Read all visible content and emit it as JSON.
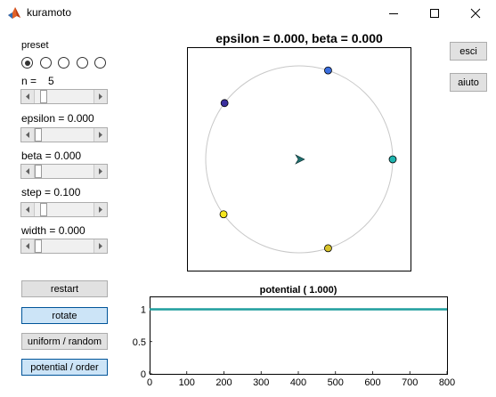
{
  "window": {
    "title": "kuramoto",
    "icon": "matlab-icon"
  },
  "controls": {
    "preset_label": "preset",
    "preset_options": 5,
    "preset_selected": 0,
    "n_label": "n =",
    "n_value": "5",
    "epsilon_label": "epsilon = 0.000",
    "beta_label": "beta = 0.000",
    "step_label": "step = 0.100",
    "width_label": "width = 0.000"
  },
  "sliders": [
    {
      "name": "n",
      "fraction": 0.1
    },
    {
      "name": "epsilon",
      "fraction": 0.0
    },
    {
      "name": "beta",
      "fraction": 0.0
    },
    {
      "name": "step",
      "fraction": 0.1
    },
    {
      "name": "width",
      "fraction": 0.0
    }
  ],
  "buttons": {
    "restart": "restart",
    "rotate": "rotate",
    "uniform_random": "uniform / random",
    "potential_order": "potential / order",
    "esci": "esci",
    "aiuto": "aiuto"
  },
  "circle_plot": {
    "title": "epsilon = 0.000, beta = 0.000",
    "oscillators": [
      {
        "angle_deg": 72,
        "color": "#3b6fe0"
      },
      {
        "angle_deg": 143,
        "color": "#3a2f9e"
      },
      {
        "angle_deg": 216,
        "color": "#f5e61e"
      },
      {
        "angle_deg": 288,
        "color": "#d8c32a"
      },
      {
        "angle_deg": 0,
        "color": "#1fb5b0"
      }
    ],
    "order_parameter": {
      "magnitude": 0.0,
      "angle_deg": 0,
      "color": "#1f6e6e"
    },
    "circle_color": "#c8c8c8"
  },
  "chart_data": {
    "type": "line",
    "title": "potential ( 1.000)",
    "xlabel": "",
    "ylabel": "",
    "xlim": [
      0,
      800
    ],
    "ylim": [
      0,
      1.2
    ],
    "xticks": [
      0,
      100,
      200,
      300,
      400,
      500,
      600,
      700,
      800
    ],
    "yticks": [
      0,
      0.5,
      1
    ],
    "ytick_labels": [
      "0",
      "0.5",
      "1"
    ],
    "series": [
      {
        "x": [
          0,
          800
        ],
        "values": [
          1,
          1
        ],
        "color": "#1f9e9e"
      }
    ],
    "grid": false
  }
}
